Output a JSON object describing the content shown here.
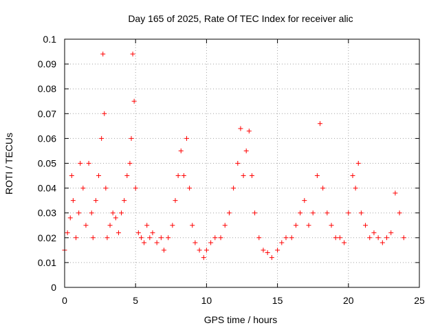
{
  "chart_data": {
    "type": "scatter",
    "title": "Day 165 of 2025, Rate Of TEC Index for receiver alic",
    "xlabel": "GPS time / hours",
    "ylabel": "ROTI / TECUs",
    "xlim": [
      0,
      25
    ],
    "ylim": [
      0,
      0.1
    ],
    "x_ticks": [
      0,
      5,
      10,
      15,
      20,
      25
    ],
    "x_tick_labels": [
      "0",
      "5",
      "10",
      "15",
      "20",
      "25"
    ],
    "y_ticks": [
      0,
      0.01,
      0.02,
      0.03,
      0.04,
      0.05,
      0.06,
      0.07,
      0.08,
      0.09,
      0.1
    ],
    "y_tick_labels": [
      "0",
      "0.01",
      "0.02",
      "0.03",
      "0.04",
      "0.05",
      "0.06",
      "0.07",
      "0.08",
      "0.09",
      "0.1"
    ],
    "grid": true,
    "marker": "+",
    "color": "#ff0000",
    "series": [
      {
        "x": [
          0.0,
          0.2,
          0.4,
          0.5,
          0.6,
          0.8,
          1.0,
          1.1,
          1.3,
          1.5,
          1.7,
          1.9,
          2.0,
          2.2,
          2.4,
          2.6,
          2.7,
          2.8,
          2.9,
          3.0,
          3.2,
          3.4,
          3.6,
          3.8,
          4.0,
          4.2,
          4.4,
          4.6,
          4.7,
          4.8,
          4.9,
          5.0,
          5.2,
          5.4,
          5.6,
          5.8,
          6.0,
          6.2,
          6.5,
          6.8,
          7.0,
          7.3,
          7.6,
          7.8,
          8.0,
          8.2,
          8.4,
          8.6,
          8.8,
          9.0,
          9.2,
          9.5,
          9.8,
          10.0,
          10.3,
          10.6,
          11.0,
          11.3,
          11.6,
          11.9,
          12.2,
          12.4,
          12.6,
          12.8,
          13.0,
          13.2,
          13.4,
          13.7,
          14.0,
          14.3,
          14.6,
          15.0,
          15.3,
          15.6,
          16.0,
          16.3,
          16.6,
          16.9,
          17.2,
          17.5,
          17.8,
          18.0,
          18.2,
          18.5,
          18.8,
          19.1,
          19.4,
          19.7,
          20.0,
          20.3,
          20.5,
          20.7,
          20.9,
          21.2,
          21.5,
          21.8,
          22.1,
          22.4,
          22.7,
          23.0,
          23.3,
          23.6,
          23.9
        ],
        "y": [
          0.015,
          0.022,
          0.028,
          0.045,
          0.035,
          0.02,
          0.03,
          0.05,
          0.04,
          0.025,
          0.05,
          0.03,
          0.02,
          0.035,
          0.045,
          0.06,
          0.094,
          0.07,
          0.04,
          0.02,
          0.025,
          0.03,
          0.028,
          0.022,
          0.03,
          0.035,
          0.045,
          0.05,
          0.06,
          0.094,
          0.075,
          0.04,
          0.022,
          0.02,
          0.018,
          0.025,
          0.02,
          0.022,
          0.018,
          0.02,
          0.015,
          0.02,
          0.025,
          0.035,
          0.045,
          0.055,
          0.045,
          0.06,
          0.04,
          0.025,
          0.018,
          0.015,
          0.012,
          0.015,
          0.018,
          0.02,
          0.02,
          0.025,
          0.03,
          0.04,
          0.05,
          0.064,
          0.045,
          0.055,
          0.063,
          0.045,
          0.03,
          0.02,
          0.015,
          0.014,
          0.012,
          0.015,
          0.018,
          0.02,
          0.02,
          0.025,
          0.03,
          0.035,
          0.025,
          0.03,
          0.045,
          0.066,
          0.04,
          0.03,
          0.025,
          0.02,
          0.02,
          0.018,
          0.03,
          0.045,
          0.04,
          0.05,
          0.03,
          0.025,
          0.02,
          0.022,
          0.02,
          0.018,
          0.02,
          0.022,
          0.038,
          0.03,
          0.02
        ]
      }
    ]
  }
}
